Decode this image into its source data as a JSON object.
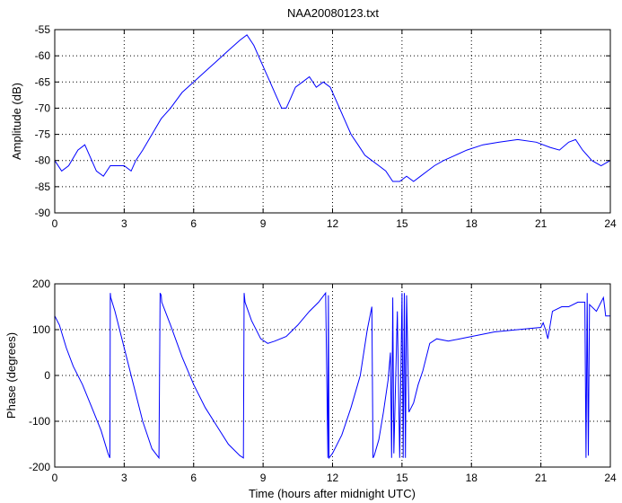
{
  "chart_data": [
    {
      "type": "line",
      "title": "NAA20080123.txt",
      "xlabel": "",
      "ylabel": "Amplitude (dB)",
      "xlim": [
        0,
        24
      ],
      "ylim": [
        -90,
        -55
      ],
      "xticks": [
        0,
        3,
        6,
        9,
        12,
        15,
        18,
        21,
        24
      ],
      "yticks": [
        -90,
        -85,
        -80,
        -75,
        -70,
        -65,
        -60,
        -55
      ],
      "grid": "dotted",
      "color": "#0000ff",
      "series": [
        {
          "x": [
            0,
            0.3,
            0.6,
            1.0,
            1.3,
            1.5,
            1.8,
            2.1,
            2.4,
            2.7,
            3.0,
            3.3,
            3.5,
            3.8,
            4.2,
            4.6,
            5.0,
            5.5,
            6.0,
            6.5,
            7.0,
            7.5,
            8.0,
            8.3,
            8.6,
            9.0,
            9.3,
            9.6,
            9.8,
            10.0,
            10.2,
            10.4,
            10.7,
            11.0,
            11.3,
            11.6,
            11.9,
            12.2,
            12.5,
            12.8,
            13.1,
            13.4,
            13.7,
            14.0,
            14.3,
            14.6,
            14.9,
            15.2,
            15.5,
            15.8,
            16.1,
            16.4,
            16.8,
            17.3,
            17.8,
            18.5,
            19.2,
            20.0,
            20.8,
            21.4,
            21.8,
            22.2,
            22.5,
            22.8,
            23.2,
            23.6,
            24.0
          ],
          "y": [
            -80,
            -82,
            -81,
            -78,
            -77,
            -79,
            -82,
            -83,
            -81,
            -81,
            -81,
            -82,
            -80,
            -78,
            -75,
            -72,
            -70,
            -67,
            -65,
            -63,
            -61,
            -59,
            -57,
            -56,
            -58,
            -62,
            -65,
            -68,
            -70,
            -70,
            -68,
            -66,
            -65,
            -64,
            -66,
            -65,
            -66,
            -69,
            -72,
            -75,
            -77,
            -79,
            -80,
            -81,
            -82,
            -84,
            -84,
            -83,
            -84,
            -83,
            -82,
            -81,
            -80,
            -79,
            -78,
            -77,
            -76.5,
            -76,
            -76.5,
            -77.5,
            -78,
            -76.5,
            -76,
            -78,
            -80,
            -81,
            -80
          ]
        }
      ]
    },
    {
      "type": "line",
      "title": "",
      "xlabel": "Time (hours after midnight UTC)",
      "ylabel": "Phase (degrees)",
      "xlim": [
        0,
        24
      ],
      "ylim": [
        -200,
        200
      ],
      "xticks": [
        0,
        3,
        6,
        9,
        12,
        15,
        18,
        21,
        24
      ],
      "yticks": [
        -200,
        -100,
        0,
        100,
        200
      ],
      "grid": "dotted",
      "color": "#0000ff",
      "series": [
        {
          "x": [
            0,
            0.2,
            0.5,
            0.8,
            1.2,
            1.6,
            2.0,
            2.3,
            2.38,
            2.4,
            2.42,
            2.6,
            3.0,
            3.4,
            3.8,
            4.2,
            4.5,
            4.55,
            4.6,
            4.62,
            5.0,
            5.5,
            6.0,
            6.5,
            7.0,
            7.5,
            8.0,
            8.15,
            8.18,
            8.2,
            8.22,
            8.5,
            8.9,
            9.2,
            9.5,
            10.0,
            10.5,
            11.0,
            11.4,
            11.7,
            11.8,
            11.82,
            11.85,
            12.0,
            12.4,
            12.8,
            13.2,
            13.5,
            13.7,
            13.75,
            13.8,
            14.0,
            14.2,
            14.4,
            14.5,
            14.55,
            14.6,
            14.65,
            14.8,
            14.9,
            15.0,
            15.05,
            15.1,
            15.15,
            15.2,
            15.3,
            15.5,
            15.7,
            15.9,
            16.2,
            16.5,
            17.0,
            17.5,
            18.0,
            19.0,
            20.0,
            21.0,
            21.1,
            21.2,
            21.3,
            21.5,
            21.9,
            22.2,
            22.6,
            22.9,
            22.95,
            23.0,
            23.05,
            23.1,
            23.4,
            23.7,
            23.75,
            23.8,
            24.0
          ],
          "y": [
            130,
            110,
            60,
            20,
            -20,
            -70,
            -120,
            -170,
            -180,
            180,
            170,
            140,
            60,
            -20,
            -100,
            -160,
            -180,
            180,
            175,
            160,
            110,
            40,
            -20,
            -70,
            -110,
            -150,
            -175,
            -180,
            180,
            170,
            160,
            120,
            80,
            70,
            75,
            85,
            110,
            140,
            160,
            180,
            -180,
            175,
            -180,
            -170,
            -130,
            -70,
            0,
            100,
            150,
            -180,
            -175,
            -140,
            -80,
            -10,
            50,
            -180,
            170,
            -170,
            140,
            -180,
            180,
            -180,
            180,
            -180,
            175,
            -80,
            -60,
            -20,
            10,
            70,
            80,
            75,
            80,
            85,
            95,
            100,
            105,
            115,
            100,
            80,
            140,
            150,
            150,
            160,
            160,
            -180,
            180,
            -175,
            155,
            140,
            170,
            150,
            130,
            130
          ]
        }
      ]
    }
  ]
}
